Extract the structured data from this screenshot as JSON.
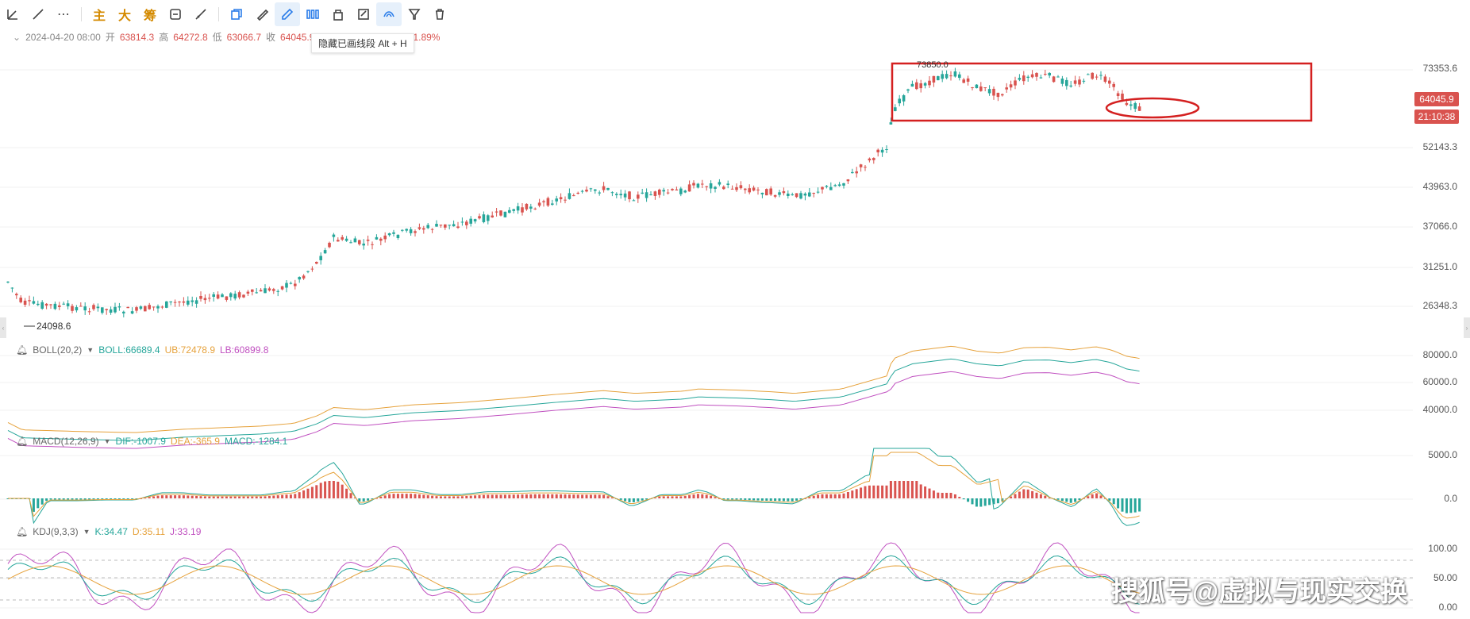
{
  "toolbar": {
    "text_buttons": [
      "主",
      "大",
      "筹"
    ],
    "tooltip": "隐藏已画线段 Alt + H"
  },
  "ohlc": {
    "date": "2024-04-20 08:00",
    "open_label": "开",
    "open": "63814.3",
    "high_label": "高",
    "high": "64272.8",
    "low_label": "低",
    "low": "63066.7",
    "close_label": "收",
    "close": "64045.9",
    "change": "1.89%"
  },
  "main_chart": {
    "price_axis": [
      "73353.6",
      "52143.3",
      "43963.0",
      "37066.0",
      "31251.0",
      "26348.3"
    ],
    "high_marker": "73850.0",
    "low_marker": "24098.6",
    "current_price": "64045.9",
    "countdown": "21:10:38",
    "annotation_color": "#d42020"
  },
  "boll": {
    "name": "BOLL(20,2)",
    "mid": "BOLL:66689.4",
    "ub": "UB:72478.9",
    "lb": "LB:60899.8",
    "axis": [
      "80000.0",
      "60000.0",
      "40000.0"
    ]
  },
  "macd": {
    "name": "MACD(12,26,9)",
    "dif": "DIF:-1007.9",
    "dea": "DEA:-365.9",
    "macd": "MACD:-1284.1",
    "axis": [
      "5000.0",
      "0.0"
    ]
  },
  "kdj": {
    "name": "KDJ(9,3,3)",
    "k": "K:34.47",
    "d": "D:35.11",
    "j": "J:33.19",
    "axis": [
      "100.00",
      "50.00",
      "0.00"
    ]
  },
  "watermark": "搜狐号@虚拟与现实交换",
  "colors": {
    "up": "#d9534f",
    "down": "#26a69a",
    "accent": "#2b7de9"
  }
}
